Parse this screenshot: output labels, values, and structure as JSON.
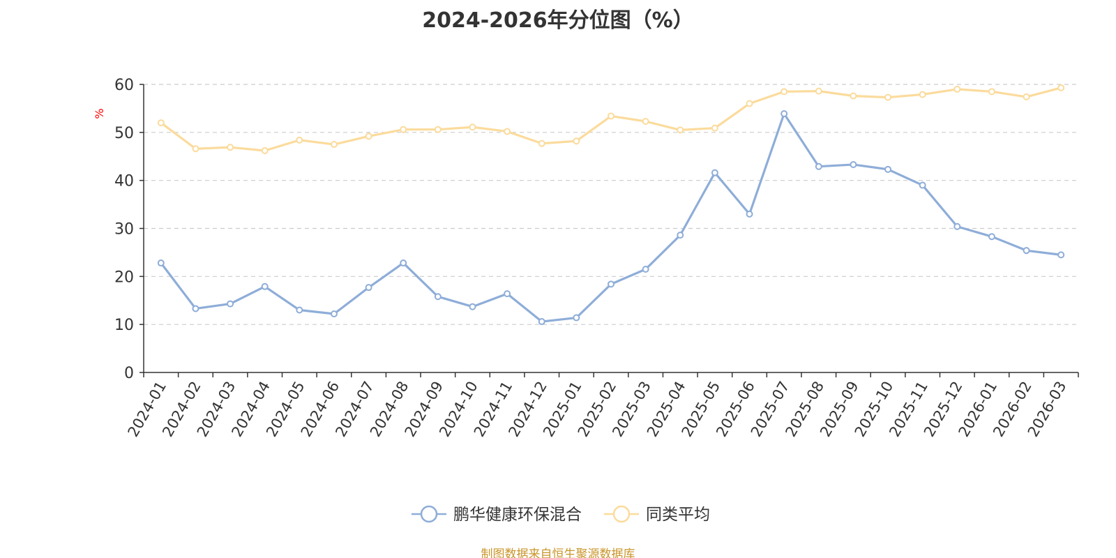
{
  "chart_data": {
    "type": "line",
    "title": "2024-2026年分位图（%）",
    "ylabel": "%",
    "xlabel": "",
    "ylim": [
      0,
      60
    ],
    "yticks": [
      0,
      10,
      20,
      30,
      40,
      50,
      60
    ],
    "grid": true,
    "legend_position": "bottom-center",
    "categories": [
      "2024-01",
      "2024-02",
      "2024-03",
      "2024-04",
      "2024-05",
      "2024-06",
      "2024-07",
      "2024-08",
      "2024-09",
      "2024-10",
      "2024-11",
      "2024-12",
      "2025-01",
      "2025-02",
      "2025-03",
      "2025-04",
      "2025-05",
      "2025-06",
      "2025-07",
      "2025-08",
      "2025-09",
      "2025-10",
      "2025-11",
      "2025-12",
      "2026-01",
      "2026-02",
      "2026-03"
    ],
    "series": [
      {
        "name": "鹏华健康环保混合",
        "color": "#8eadd8",
        "values": [
          22.8,
          13.3,
          14.3,
          17.9,
          13.0,
          12.2,
          17.7,
          22.8,
          15.8,
          13.7,
          16.4,
          10.6,
          11.4,
          18.4,
          21.5,
          28.6,
          41.6,
          33.0,
          53.9,
          42.9,
          43.3,
          42.3,
          39.0,
          30.4,
          28.3,
          25.4,
          24.5
        ]
      },
      {
        "name": "同类平均",
        "color": "#fbdb9c",
        "values": [
          52.0,
          46.6,
          46.9,
          46.2,
          48.4,
          47.5,
          49.2,
          50.6,
          50.6,
          51.1,
          50.2,
          47.7,
          48.2,
          53.4,
          52.3,
          50.5,
          50.9,
          56.0,
          58.5,
          58.6,
          57.6,
          57.3,
          57.9,
          59.0,
          58.5,
          57.4,
          59.3
        ]
      }
    ]
  },
  "source_note": "制图数据来自恒生聚源数据库",
  "colors": {
    "axis": "#333333",
    "grid": "#cccccc",
    "ylabel": "#ff0000",
    "source": "#c8962a"
  }
}
